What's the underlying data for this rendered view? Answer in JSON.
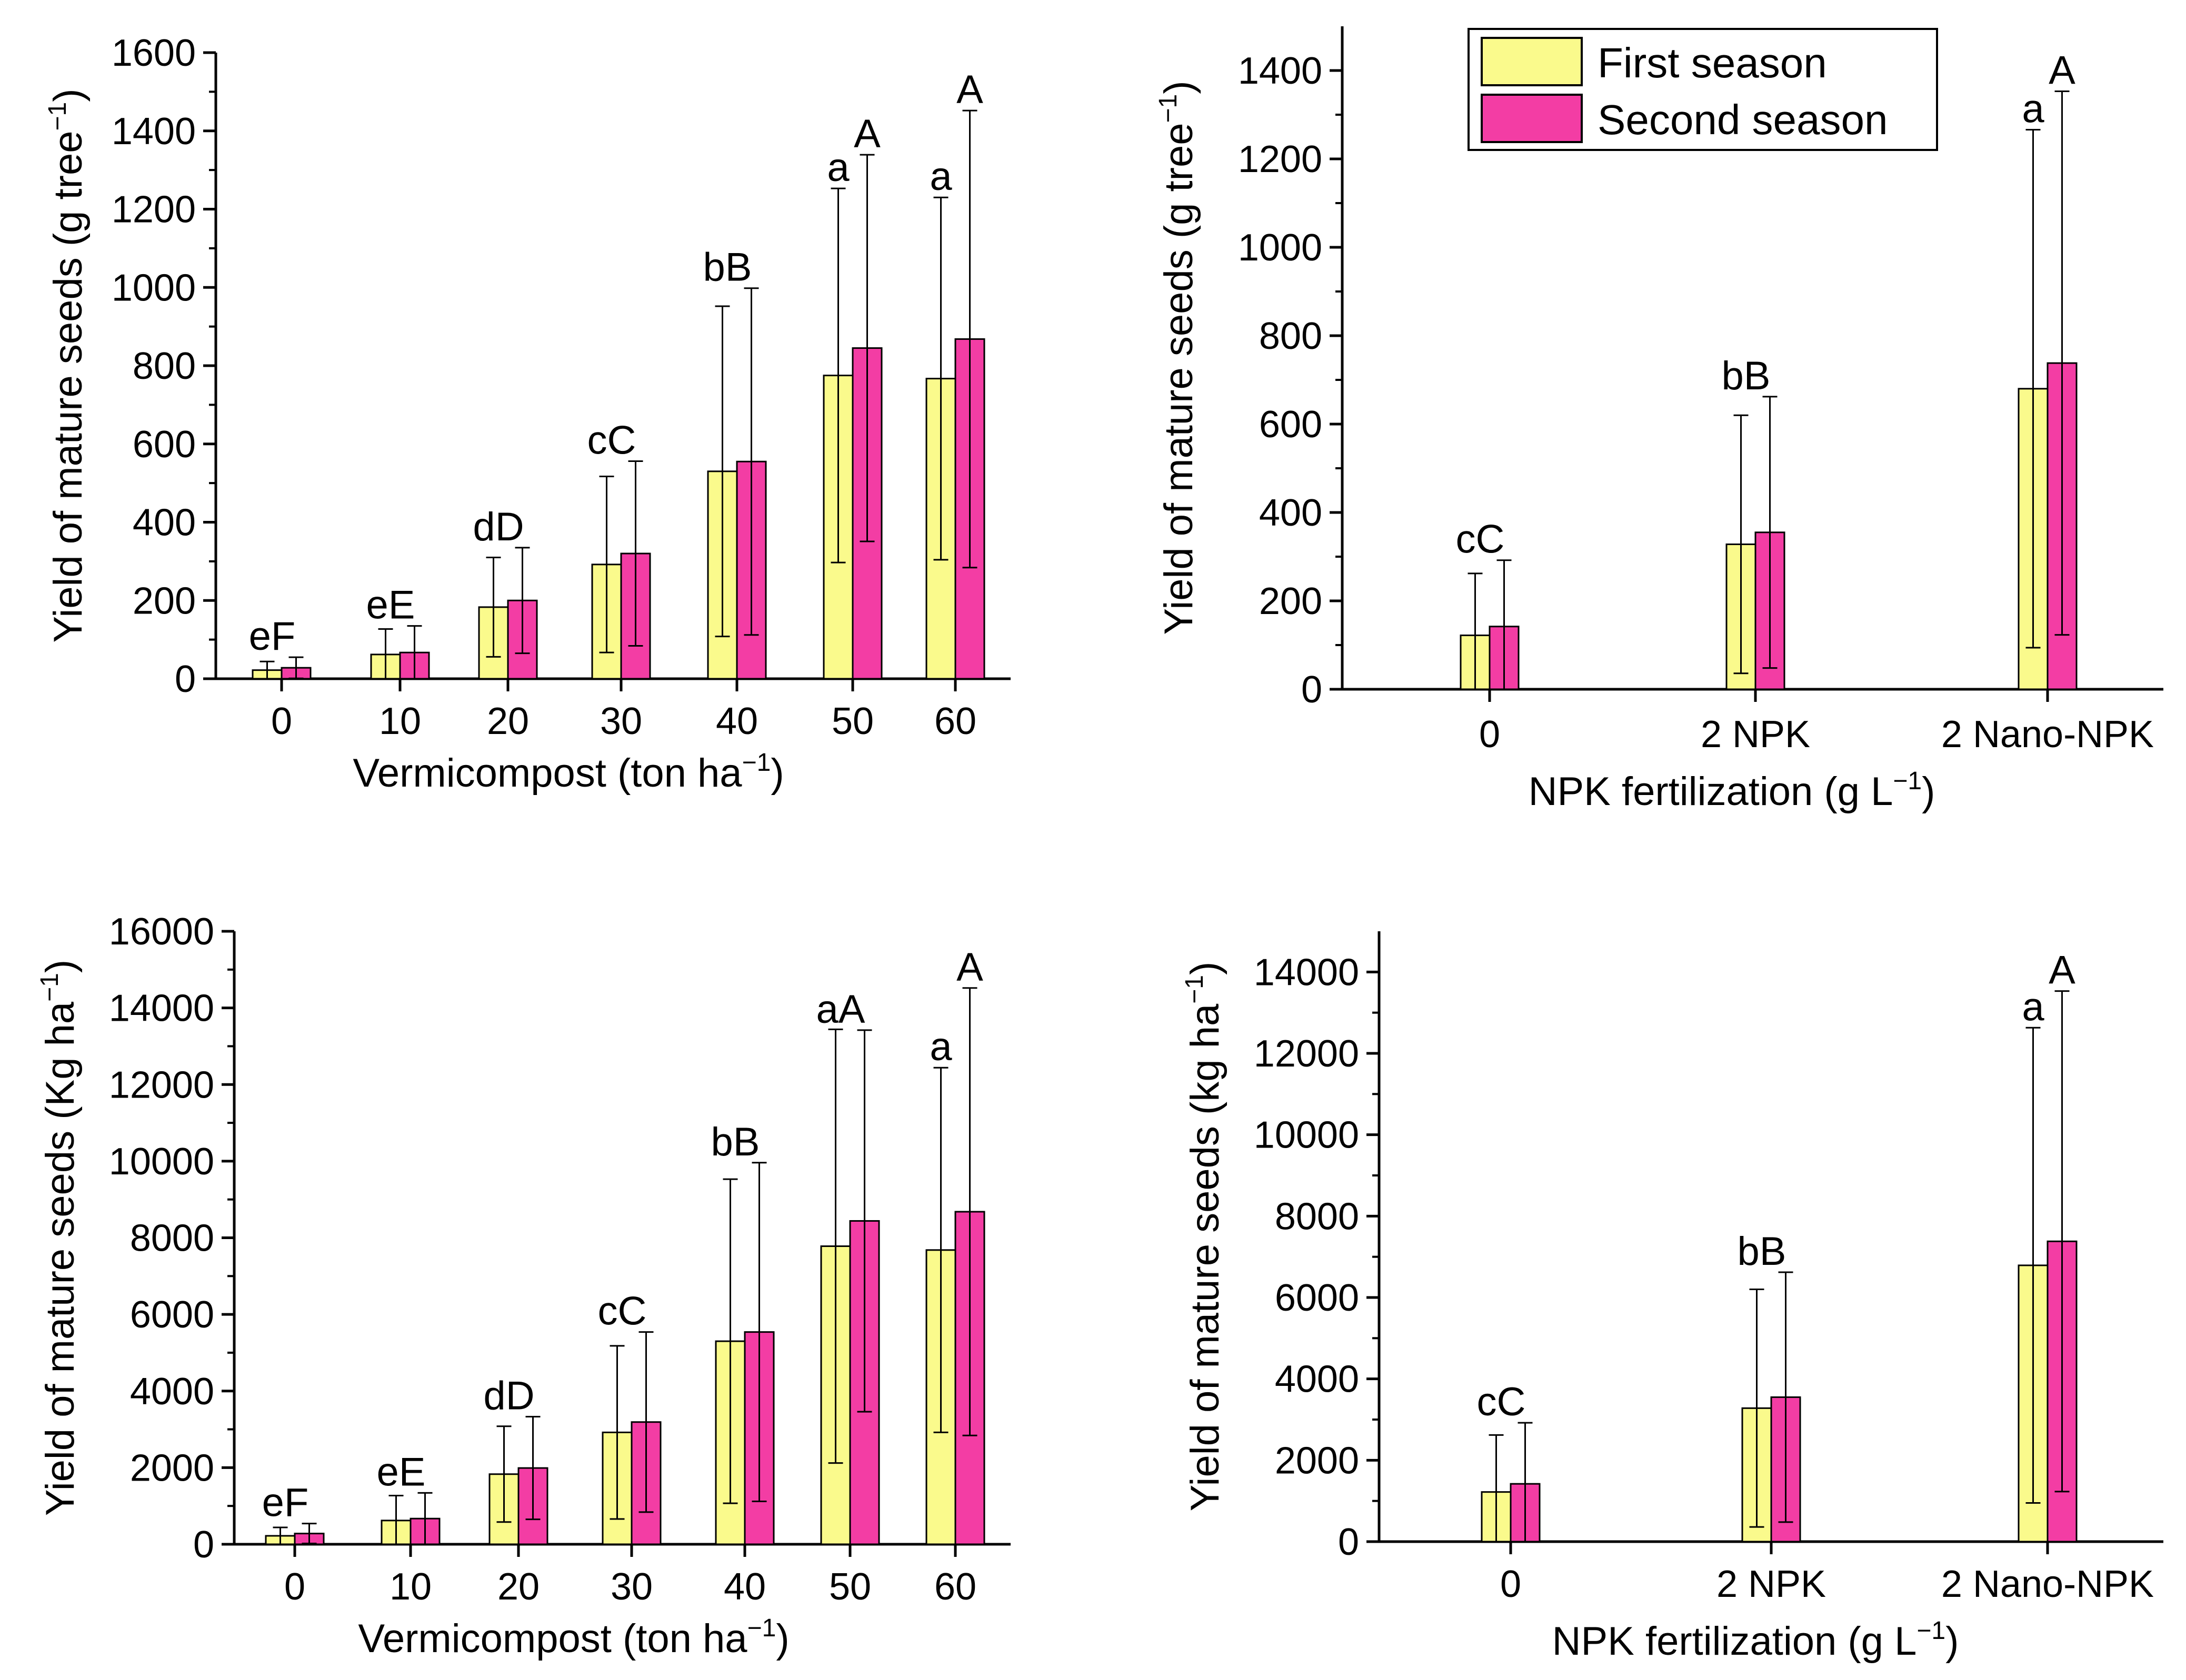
{
  "colors": {
    "first_season": "#FAFA8C",
    "second_season": "#F33DA4",
    "axis": "#000000"
  },
  "legend": {
    "items": [
      {
        "label": "First season",
        "color": "#FAFA8C"
      },
      {
        "label": "Second season",
        "color": "#F33DA4"
      }
    ],
    "placement": "top"
  },
  "chart_data": [
    {
      "type": "bar",
      "xlabel": "Vermicompost (ton ha",
      "xlabel_sup": "−1",
      "xlabel_end": ")",
      "ylabel": "Yield of mature seeds (g tree",
      "ylabel_sup": "−1",
      "ylabel_end": ")",
      "ylim": [
        0,
        1600
      ],
      "yticks": [
        "0",
        "200",
        "400",
        "600",
        "800",
        "1000",
        "1200",
        "1400",
        "1600"
      ],
      "categories": [
        "0",
        "10",
        "20",
        "30",
        "40",
        "50",
        "60"
      ],
      "series": [
        {
          "name": "First season",
          "values": [
            22,
            62,
            183,
            292,
            530,
            775,
            767
          ],
          "errors": [
            22,
            65,
            127,
            225,
            422,
            478,
            463
          ]
        },
        {
          "name": "Second season",
          "values": [
            28,
            67,
            200,
            320,
            555,
            845,
            868
          ],
          "errors": [
            27,
            68,
            135,
            236,
            443,
            494,
            584
          ]
        }
      ],
      "annotations": [
        {
          "category": "0",
          "series": "Second season",
          "text": "eF"
        },
        {
          "category": "10",
          "series": "Second season",
          "text": "eE"
        },
        {
          "category": "20",
          "series": "Second season",
          "text": "dD"
        },
        {
          "category": "30",
          "series": "Second season",
          "text": "cC"
        },
        {
          "category": "40",
          "series": "Second season",
          "text": "bB"
        },
        {
          "category": "50",
          "series": "First season",
          "text": "a"
        },
        {
          "category": "50",
          "series": "Second season",
          "text": "A"
        },
        {
          "category": "60",
          "series": "First season",
          "text": "a"
        },
        {
          "category": "60",
          "series": "Second season",
          "text": "A"
        }
      ]
    },
    {
      "type": "bar",
      "xlabel": "NPK fertilization (g L",
      "xlabel_sup": "−1",
      "xlabel_end": ")",
      "ylabel": "Yield of mature seeds (g tree",
      "ylabel_sup": "−1",
      "ylabel_end": ")",
      "ylim": [
        0,
        1500
      ],
      "yticks": [
        "0",
        "200",
        "400",
        "600",
        "800",
        "1000",
        "1200",
        "1400"
      ],
      "categories": [
        "0",
        "2 NPK",
        "2 Nano-NPK"
      ],
      "series": [
        {
          "name": "First season",
          "values": [
            122,
            328,
            680
          ],
          "errors": [
            140,
            292,
            586
          ]
        },
        {
          "name": "Second season",
          "values": [
            142,
            355,
            738
          ],
          "errors": [
            150,
            307,
            615
          ]
        }
      ],
      "annotations": [
        {
          "category": "0",
          "series": "Second season",
          "text": "cC"
        },
        {
          "category": "2 NPK",
          "series": "Second season",
          "text": "bB"
        },
        {
          "category": "2 Nano-NPK",
          "series": "First season",
          "text": "a"
        },
        {
          "category": "2 Nano-NPK",
          "series": "Second season",
          "text": "A"
        }
      ]
    },
    {
      "type": "bar",
      "xlabel": "Vermicompost (ton ha",
      "xlabel_sup": "−1",
      "xlabel_end": ")",
      "ylabel": "Yield of mature seeds (Kg ha",
      "ylabel_sup": "−1",
      "ylabel_end": ")",
      "ylim": [
        0,
        16000
      ],
      "yticks": [
        "0",
        "2000",
        "4000",
        "6000",
        "8000",
        "10000",
        "12000",
        "14000",
        "16000"
      ],
      "categories": [
        "0",
        "10",
        "20",
        "30",
        "40",
        "50",
        "60"
      ],
      "series": [
        {
          "name": "First season",
          "values": [
            220,
            620,
            1830,
            2920,
            5300,
            7780,
            7680
          ],
          "errors": [
            220,
            650,
            1250,
            2260,
            4230,
            5660,
            4760
          ]
        },
        {
          "name": "Second season",
          "values": [
            280,
            670,
            1990,
            3190,
            5540,
            8440,
            8680
          ],
          "errors": [
            260,
            670,
            1340,
            2350,
            4420,
            4980,
            5840
          ]
        }
      ],
      "annotations": [
        {
          "category": "0",
          "series": "Second season",
          "text": "eF"
        },
        {
          "category": "10",
          "series": "Second season",
          "text": "eE"
        },
        {
          "category": "20",
          "series": "Second season",
          "text": "dD"
        },
        {
          "category": "30",
          "series": "Second season",
          "text": "cC"
        },
        {
          "category": "40",
          "series": "Second season",
          "text": "bB"
        },
        {
          "category": "50",
          "series": "Second season",
          "text": "aA"
        },
        {
          "category": "60",
          "series": "First season",
          "text": "a"
        },
        {
          "category": "60",
          "series": "Second season",
          "text": "A"
        }
      ]
    },
    {
      "type": "bar",
      "xlabel": "NPK fertilization (g L",
      "xlabel_sup": "−1",
      "xlabel_end": ")",
      "ylabel": "Yield of mature seeds (kg ha",
      "ylabel_sup": "−1",
      "ylabel_end": ")",
      "ylim": [
        0,
        15000
      ],
      "yticks": [
        "0",
        "2000",
        "4000",
        "6000",
        "8000",
        "10000",
        "12000",
        "14000"
      ],
      "categories": [
        "0",
        "2 NPK",
        "2 Nano-NPK"
      ],
      "series": [
        {
          "name": "First season",
          "values": [
            1220,
            3280,
            6790
          ],
          "errors": [
            1400,
            2920,
            5840
          ]
        },
        {
          "name": "Second season",
          "values": [
            1420,
            3550,
            7380
          ],
          "errors": [
            1500,
            3070,
            6150
          ]
        }
      ],
      "annotations": [
        {
          "category": "0",
          "series": "Second season",
          "text": "cC"
        },
        {
          "category": "2 NPK",
          "series": "Second season",
          "text": "bB"
        },
        {
          "category": "2 Nano-NPK",
          "series": "First season",
          "text": "a"
        },
        {
          "category": "2 Nano-NPK",
          "series": "Second season",
          "text": "A"
        }
      ]
    }
  ]
}
